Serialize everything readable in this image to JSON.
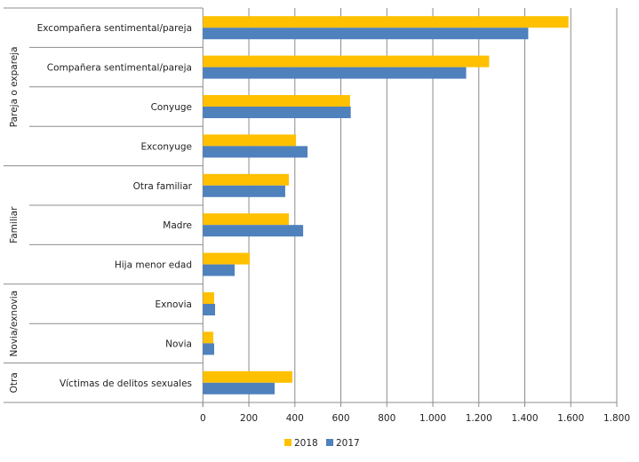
{
  "chart_data": {
    "type": "bar",
    "orientation": "horizontal",
    "groups": [
      {
        "label": "Pareja o expareja",
        "categories": [
          "Excompañera sentimental/pareja",
          "Compañera sentimental/pareja",
          "Conyuge",
          "Exconyuge"
        ]
      },
      {
        "label": "Familiar",
        "categories": [
          "Otra familiar",
          "Madre",
          "Hija menor edad"
        ]
      },
      {
        "label": "Novia/exnovia",
        "categories": [
          "Exnovia",
          "Novia"
        ]
      },
      {
        "label": "Otra",
        "categories": [
          "Víctimas de delitos sexuales"
        ]
      }
    ],
    "categories": [
      "Excompañera sentimental/pareja",
      "Compañera sentimental/pareja",
      "Conyuge",
      "Exconyuge",
      "Otra familiar",
      "Madre",
      "Hija menor edad",
      "Exnovia",
      "Novia",
      "Víctimas de delitos sexuales"
    ],
    "series": [
      {
        "name": "2018",
        "color": "#FFC000",
        "values": [
          1590,
          1245,
          640,
          405,
          374,
          374,
          204,
          49,
          45,
          389
        ]
      },
      {
        "name": "2017",
        "color": "#4F81BD",
        "values": [
          1415,
          1145,
          643,
          455,
          358,
          436,
          138,
          53,
          49,
          312
        ]
      }
    ],
    "xlim": [
      0,
      1800
    ],
    "xticks": [
      0,
      200,
      400,
      600,
      800,
      1000,
      1200,
      1400,
      1600,
      1800
    ],
    "xtick_labels": [
      "0",
      "200",
      "400",
      "600",
      "800",
      "1.000",
      "1.200",
      "1.400",
      "1.600",
      "1.800"
    ],
    "grid": "vertical",
    "legend_position": "bottom",
    "legend": [
      "2018",
      "2017"
    ]
  }
}
